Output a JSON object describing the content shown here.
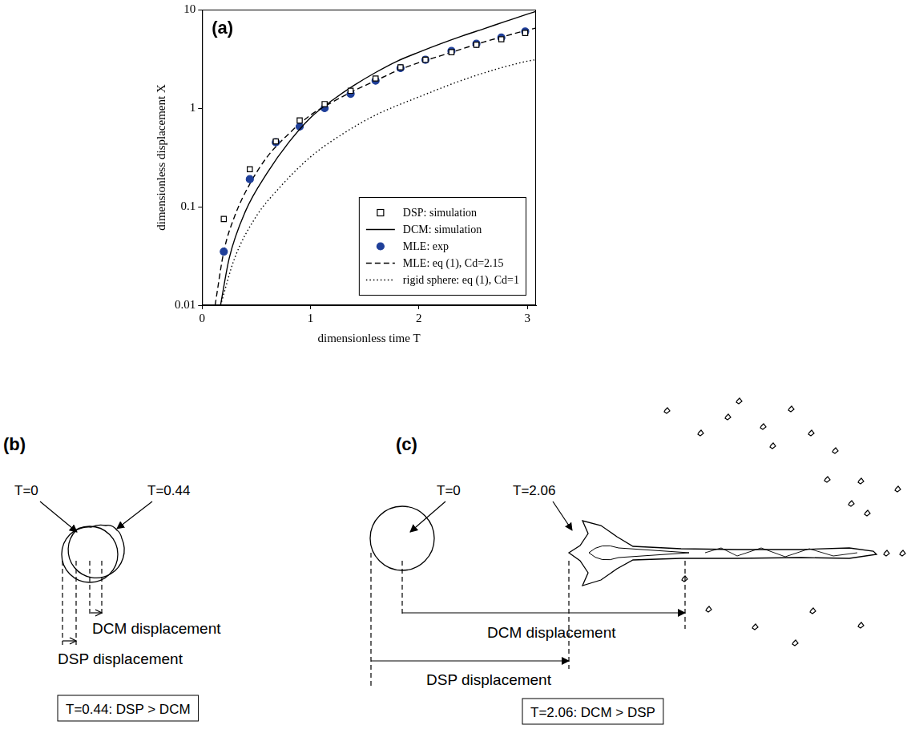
{
  "chart_data": {
    "type": "line",
    "panel_label": "(a)",
    "xlabel": "dimensionless time T",
    "ylabel": "dimensionless displacement X",
    "xlim": [
      0,
      3.08
    ],
    "xticks": [
      0,
      1,
      2,
      3
    ],
    "ylim": [
      0.01,
      10
    ],
    "yticks": [
      0.01,
      0.1,
      1,
      10
    ],
    "log": "y",
    "grid": false,
    "legend": "lower right",
    "series": [
      {
        "name": "DSP: simulation",
        "type": "scatter",
        "color": "#000000",
        "marker": "open_square",
        "line_style": "none",
        "x": [
          0.2,
          0.44,
          0.68,
          0.9,
          1.13,
          1.37,
          1.6,
          1.83,
          2.06,
          2.3,
          2.53,
          2.76,
          2.98
        ],
        "values": [
          0.075,
          0.24,
          0.46,
          0.75,
          1.1,
          1.5,
          2.0,
          2.6,
          3.1,
          3.7,
          4.4,
          5.0,
          5.8
        ]
      },
      {
        "name": "DCM: simulation",
        "type": "line",
        "color": "#000000",
        "marker": "none",
        "line_style": "solid",
        "x": [
          0.17,
          0.25,
          0.4,
          0.6,
          0.8,
          1.0,
          1.2,
          1.4,
          1.6,
          1.8,
          2.0,
          2.2,
          2.4,
          2.6,
          2.8,
          3.0,
          3.08
        ],
        "values": [
          0.01,
          0.03,
          0.09,
          0.22,
          0.45,
          0.8,
          1.2,
          1.7,
          2.3,
          3.0,
          3.7,
          4.5,
          5.4,
          6.4,
          7.6,
          9.0,
          9.6
        ]
      },
      {
        "name": "MLE: exp",
        "type": "scatter",
        "color": "#1f3f99",
        "marker": "circle",
        "line_style": "none",
        "x": [
          0.2,
          0.44,
          0.68,
          0.9,
          1.13,
          1.37,
          1.6,
          1.83,
          2.06,
          2.3,
          2.53,
          2.76,
          2.98
        ],
        "values": [
          0.035,
          0.19,
          0.45,
          0.65,
          1.0,
          1.4,
          1.9,
          2.55,
          3.1,
          3.8,
          4.5,
          5.2,
          6.0
        ]
      },
      {
        "name": "MLE: eq (1), Cd=2.15",
        "type": "line",
        "color": "#000000",
        "marker": "none",
        "line_style": "dashed",
        "x": [
          0.12,
          0.2,
          0.3,
          0.44,
          0.6,
          0.8,
          1.0,
          1.2,
          1.4,
          1.6,
          1.8,
          2.0,
          2.2,
          2.4,
          2.6,
          2.8,
          3.0,
          3.08
        ],
        "values": [
          0.01,
          0.035,
          0.08,
          0.17,
          0.32,
          0.55,
          0.85,
          1.15,
          1.5,
          1.9,
          2.4,
          2.9,
          3.4,
          4.0,
          4.7,
          5.4,
          6.2,
          6.5
        ]
      },
      {
        "name": "rigid sphere: eq (1), Cd=1",
        "type": "line",
        "color": "#000000",
        "marker": "none",
        "line_style": "dotted",
        "x": [
          0.17,
          0.3,
          0.5,
          0.7,
          1.0,
          1.3,
          1.6,
          2.0,
          2.5,
          3.0,
          3.08
        ],
        "values": [
          0.01,
          0.03,
          0.08,
          0.15,
          0.32,
          0.55,
          0.85,
          1.3,
          2.1,
          3.0,
          3.1
        ]
      }
    ]
  },
  "diagrams": [
    {
      "panel_label": "(b)",
      "initial_label": "T=0",
      "deformed_label": "T=0.44",
      "dcm_label": "DCM displacement",
      "dsp_label": "DSP displacement",
      "caption": "T=0.44: DSP > DCM"
    },
    {
      "panel_label": "(c)",
      "initial_label": "T=0",
      "deformed_label": "T=2.06",
      "dcm_label": "DCM displacement",
      "dsp_label": "DSP displacement",
      "caption": "T=2.06: DCM > DSP"
    }
  ]
}
